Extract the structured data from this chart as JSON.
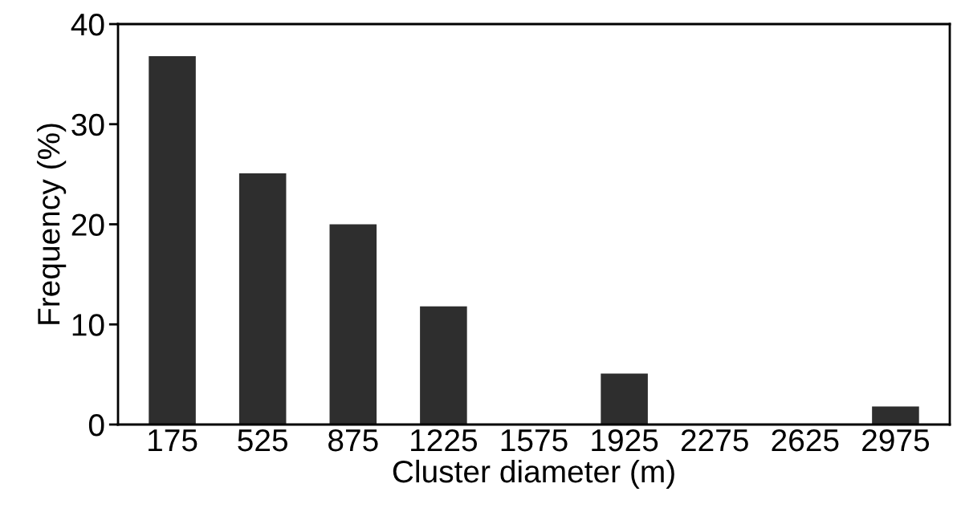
{
  "chart_data": {
    "type": "bar",
    "xlabel": "Cluster diameter (m)",
    "ylabel": "Frequency (%)",
    "categories": [
      "175",
      "525",
      "875",
      "1225",
      "1575",
      "1925",
      "2275",
      "2625",
      "2975"
    ],
    "values": [
      36.8,
      25.1,
      20.0,
      11.8,
      0,
      5.1,
      0,
      0,
      1.8
    ],
    "color": "#2e2e2e",
    "ylim": [
      0,
      40
    ],
    "yticks": [
      0,
      10,
      20,
      30,
      40
    ],
    "grid": false
  }
}
